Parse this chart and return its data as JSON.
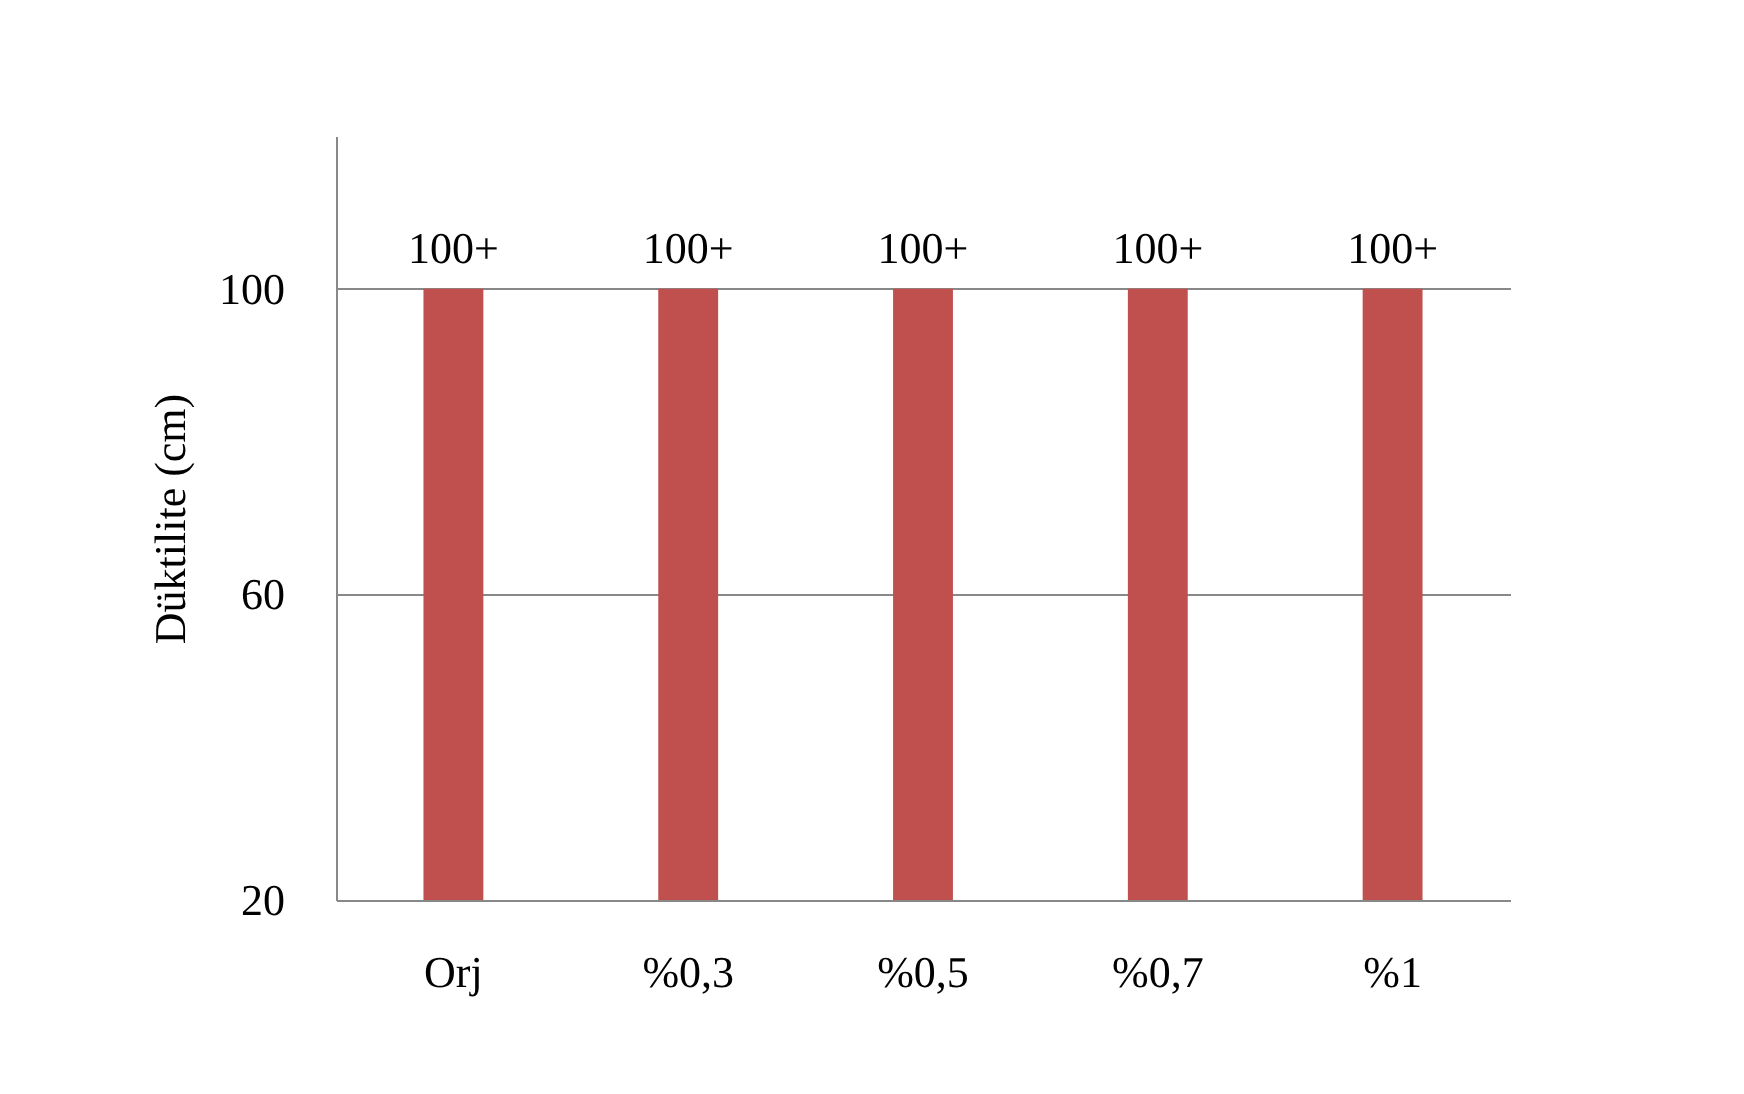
{
  "chart_data": {
    "type": "bar",
    "ylabel": "Düktilite (cm)",
    "categories": [
      "Orj",
      "%0,3",
      "%0,5",
      "%0,7",
      "%1"
    ],
    "values": [
      100,
      100,
      100,
      100,
      100
    ],
    "color": "#c0504d",
    "value_labels": [
      "100+",
      "100+",
      "100+",
      "100+",
      "100+"
    ],
    "ylim": [
      20,
      120
    ],
    "yticks": [
      20,
      60,
      100
    ],
    "grid": "y"
  }
}
